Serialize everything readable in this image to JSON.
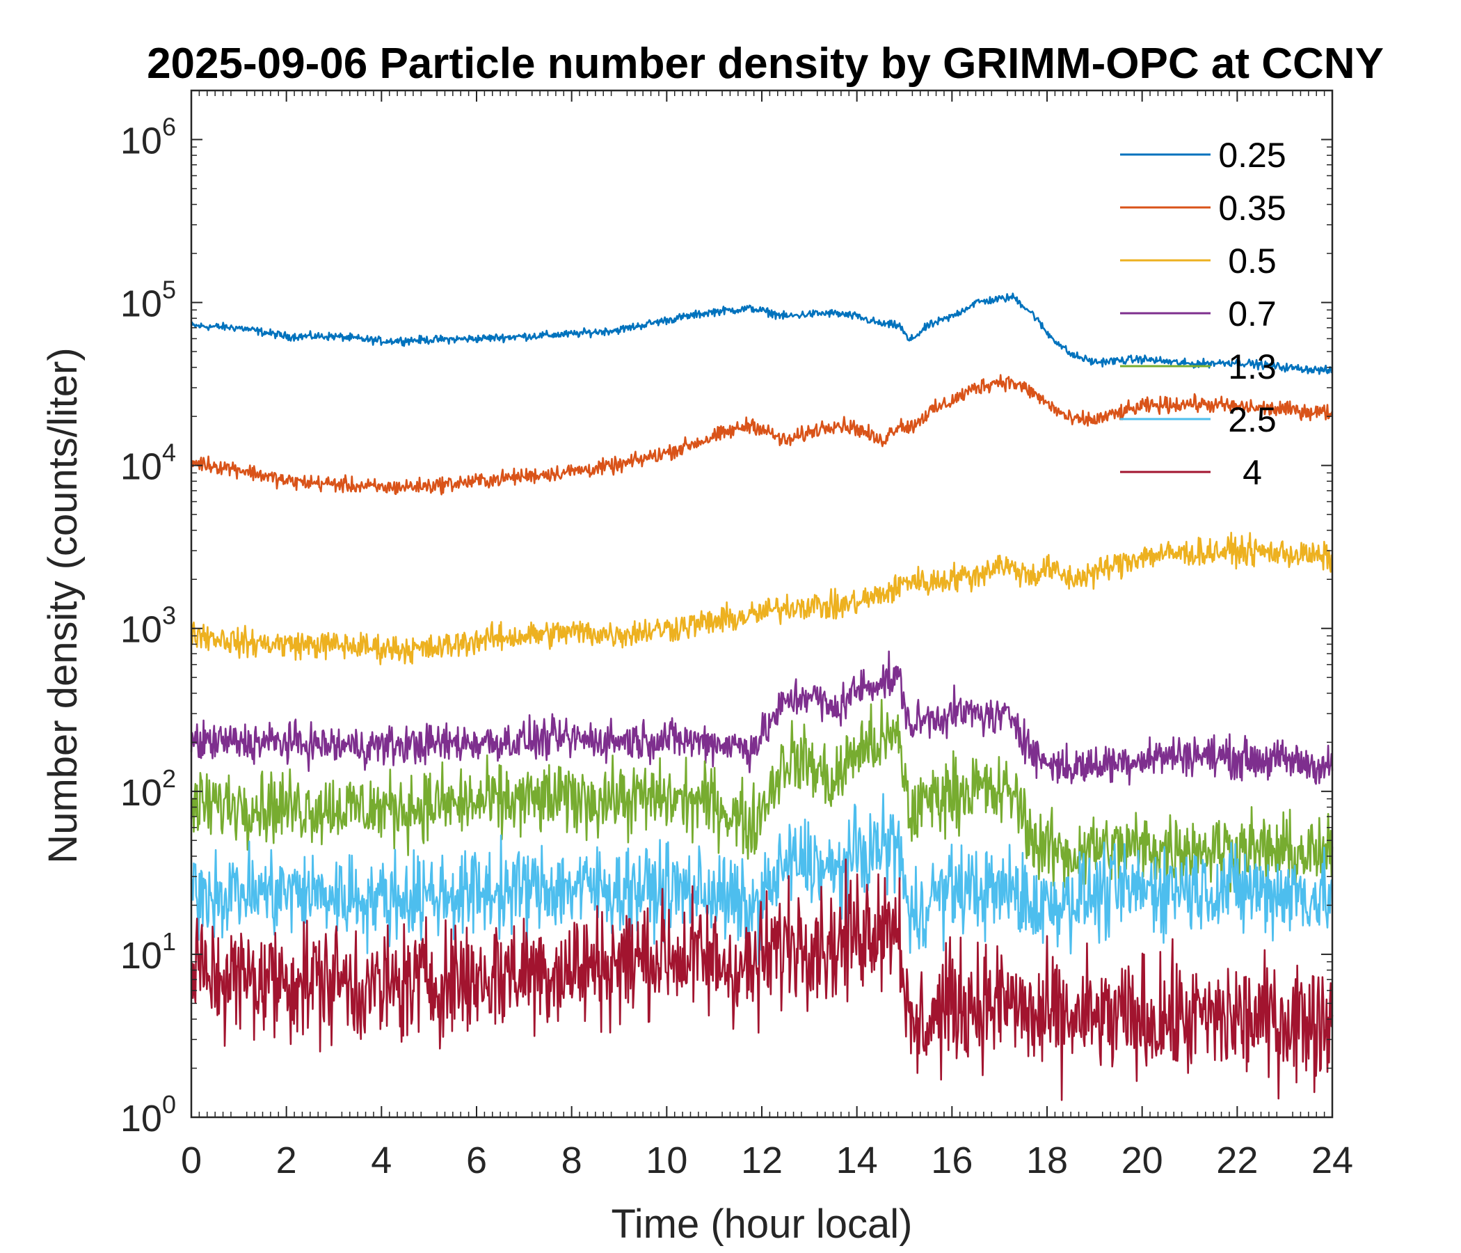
{
  "chart_data": {
    "type": "line",
    "title": "2025-09-06 Particle number density by GRIMM-OPC at CCNY",
    "xlabel": "Time (hour local)",
    "ylabel": "Number density (counts/liter)",
    "xlim": [
      0,
      24
    ],
    "ylim": [
      1,
      2000000
    ],
    "yscale": "log",
    "grid": false,
    "legend_position": "top-right",
    "x_ticks": [
      "0",
      "2",
      "4",
      "6",
      "8",
      "10",
      "12",
      "14",
      "16",
      "18",
      "20",
      "22",
      "24"
    ],
    "y_ticks": [
      {
        "base": "10",
        "exp": "0",
        "value": 1
      },
      {
        "base": "10",
        "exp": "1",
        "value": 10
      },
      {
        "base": "10",
        "exp": "2",
        "value": 100
      },
      {
        "base": "10",
        "exp": "3",
        "value": 1000
      },
      {
        "base": "10",
        "exp": "4",
        "value": 10000
      },
      {
        "base": "10",
        "exp": "5",
        "value": 100000
      },
      {
        "base": "10",
        "exp": "6",
        "value": 1000000
      }
    ],
    "x": [
      0,
      1,
      2,
      3,
      4,
      5,
      6,
      7,
      8,
      9,
      10,
      11,
      11.8,
      12.5,
      13,
      13.5,
      14,
      14.5,
      14.9,
      15.1,
      15.5,
      16,
      16.5,
      17,
      17.3,
      17.7,
      18,
      18.5,
      19,
      20,
      21,
      22,
      23,
      24
    ],
    "series": [
      {
        "name": "0.25",
        "color": "#0072BD",
        "noise": 0.02,
        "values": [
          72000,
          70000,
          62000,
          62000,
          58000,
          59000,
          60000,
          62000,
          64000,
          68000,
          78000,
          88000,
          92000,
          82000,
          85000,
          86000,
          82000,
          74000,
          72000,
          58000,
          72000,
          82000,
          100000,
          105000,
          108000,
          85000,
          65000,
          48000,
          43000,
          45000,
          42000,
          43000,
          40000,
          38000
        ]
      },
      {
        "name": "0.35",
        "color": "#D95319",
        "noise": 0.04,
        "values": [
          10500,
          9500,
          8000,
          7700,
          7300,
          7500,
          8000,
          8600,
          9200,
          10000,
          12000,
          15000,
          18000,
          14000,
          16000,
          18000,
          17000,
          14000,
          18000,
          17000,
          21000,
          25000,
          30000,
          33000,
          32000,
          28000,
          24000,
          19000,
          19000,
          23000,
          24000,
          23000,
          22000,
          21000
        ]
      },
      {
        "name": "0.5",
        "color": "#EDB120",
        "noise": 0.07,
        "values": [
          950,
          820,
          800,
          790,
          760,
          740,
          850,
          900,
          950,
          920,
          1000,
          1100,
          1200,
          1350,
          1400,
          1350,
          1450,
          1600,
          1800,
          2000,
          1900,
          2050,
          2100,
          2500,
          2300,
          2100,
          2350,
          2000,
          2200,
          2800,
          2900,
          3000,
          2900,
          2700
        ]
      },
      {
        "name": "0.7",
        "color": "#7E2F8E",
        "noise": 0.1,
        "values": [
          200,
          200,
          200,
          190,
          190,
          195,
          200,
          205,
          210,
          205,
          210,
          200,
          185,
          350,
          400,
          310,
          420,
          480,
          490,
          250,
          280,
          300,
          300,
          280,
          290,
          170,
          150,
          140,
          145,
          160,
          170,
          160,
          155,
          140
        ]
      },
      {
        "name": "1.3",
        "color": "#77AC30",
        "noise": 0.18,
        "values": [
          80,
          85,
          80,
          80,
          78,
          82,
          85,
          88,
          90,
          90,
          90,
          85,
          60,
          160,
          150,
          110,
          180,
          200,
          210,
          70,
          90,
          100,
          105,
          95,
          100,
          50,
          45,
          40,
          45,
          45,
          45,
          45,
          42,
          40
        ]
      },
      {
        "name": "2.5",
        "color": "#4DBEEE",
        "noise": 0.22,
        "values": [
          25,
          24,
          24,
          23,
          22,
          23,
          24,
          25,
          26,
          25,
          25,
          24,
          18,
          35,
          38,
          30,
          40,
          45,
          48,
          15,
          22,
          25,
          25,
          24,
          25,
          20,
          20,
          22,
          23,
          25,
          26,
          25,
          24,
          22
        ]
      },
      {
        "name": "4",
        "color": "#A2142F",
        "noise": 0.3,
        "values": [
          8,
          7,
          7,
          7,
          6,
          7,
          7,
          8,
          8,
          9,
          10,
          9,
          8,
          12,
          13,
          11,
          14,
          16,
          16,
          3,
          4,
          5,
          5,
          5,
          5,
          4,
          4,
          4,
          4,
          4,
          4,
          4,
          4,
          4
        ]
      }
    ]
  }
}
